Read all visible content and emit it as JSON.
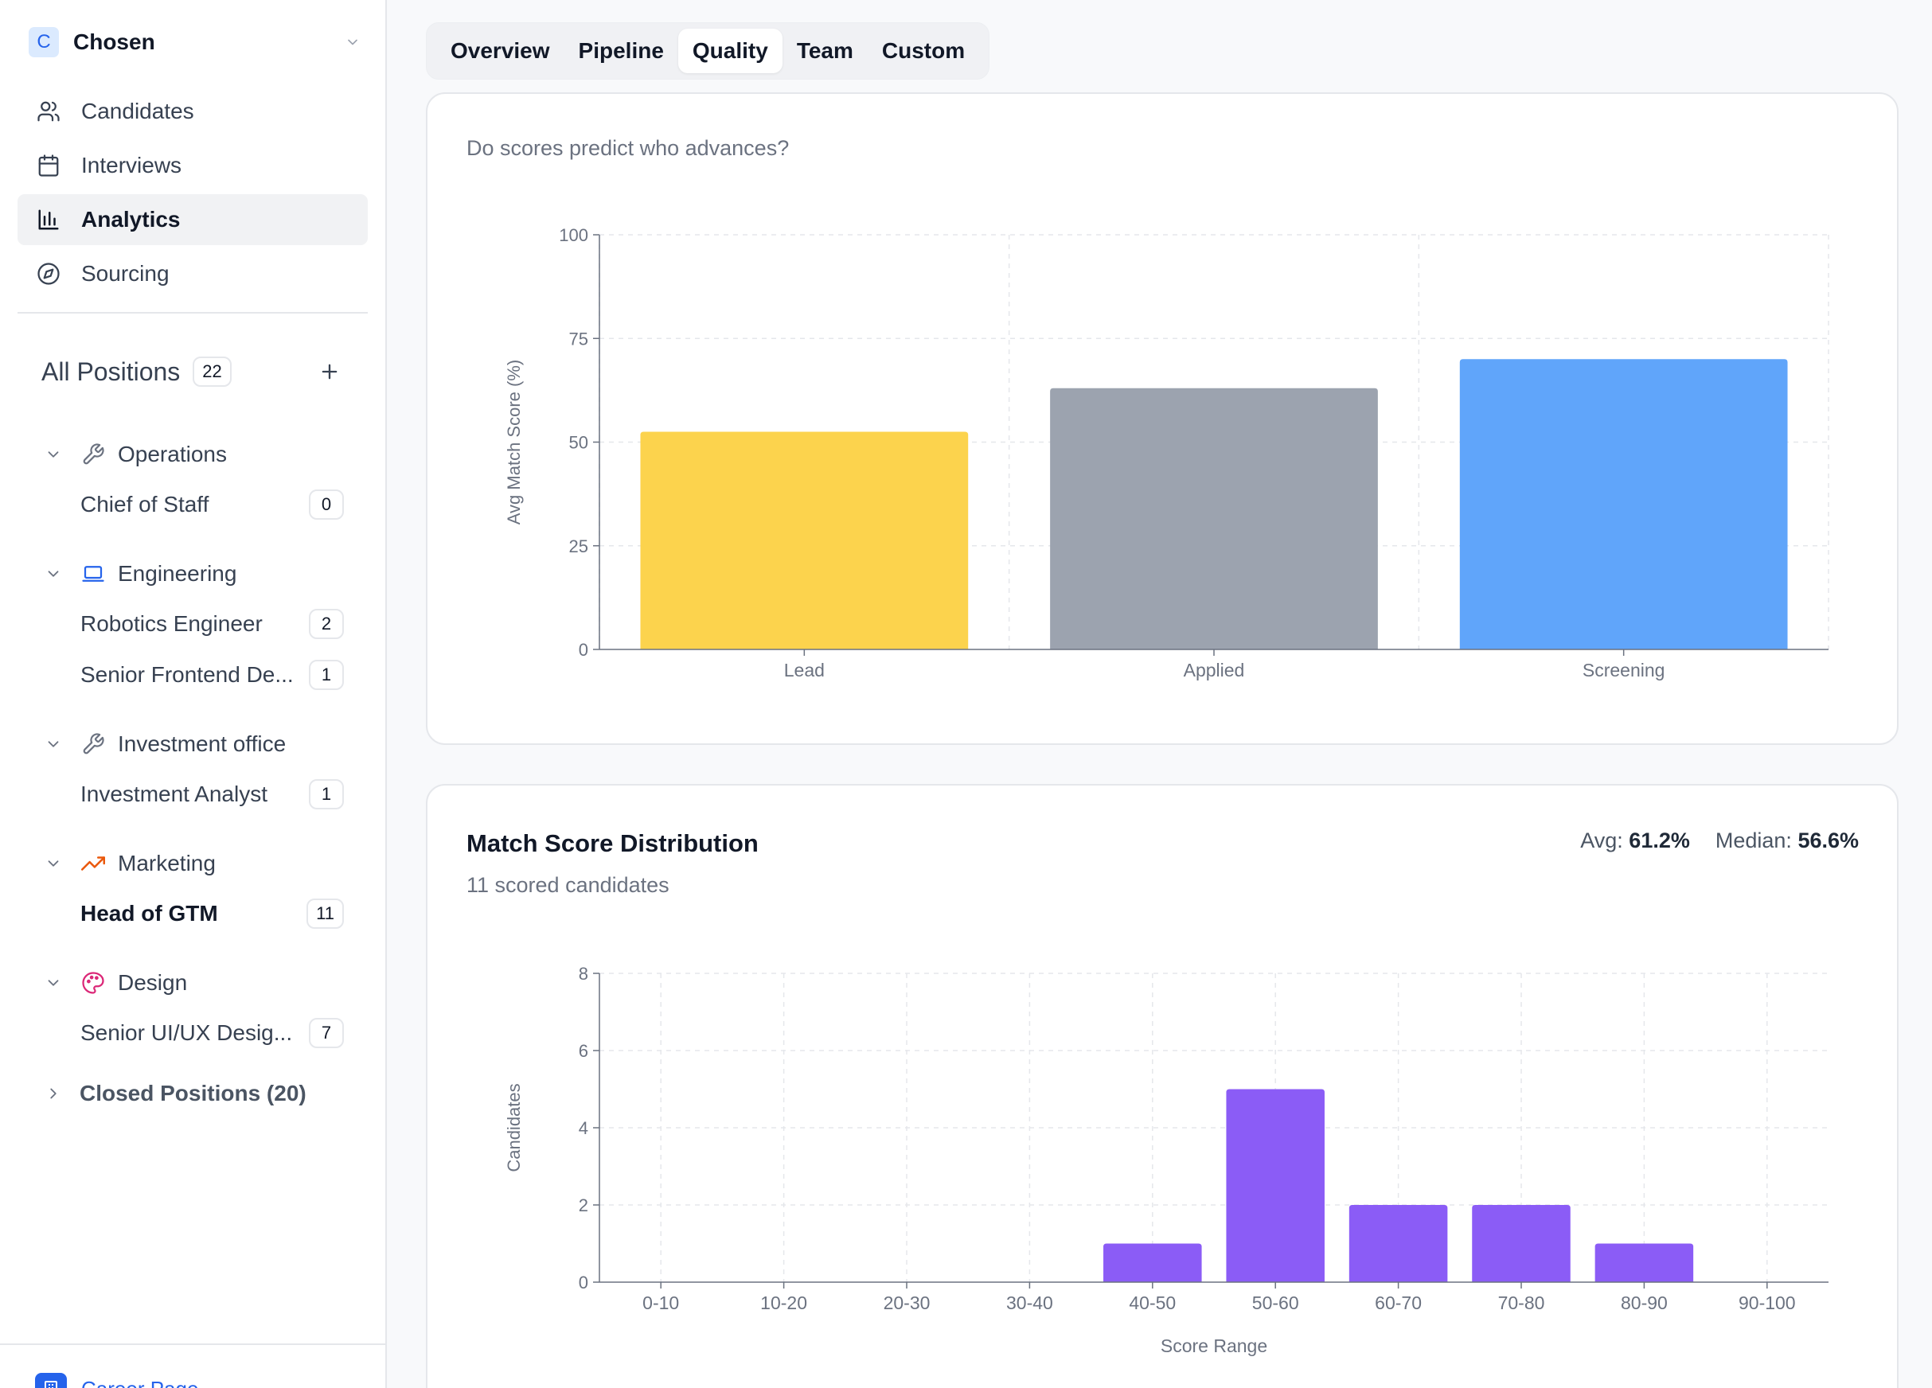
{
  "sidebar": {
    "workspace": {
      "logo_letter": "C",
      "name": "Chosen"
    },
    "nav": [
      {
        "label": "Candidates",
        "icon": "users-icon",
        "active": false
      },
      {
        "label": "Interviews",
        "icon": "calendar-icon",
        "active": false
      },
      {
        "label": "Analytics",
        "icon": "bar-chart-icon",
        "active": true
      },
      {
        "label": "Sourcing",
        "icon": "compass-icon",
        "active": false
      }
    ],
    "positions": {
      "label": "All Positions",
      "count": "22"
    },
    "groups": [
      {
        "name": "Operations",
        "icon": "wrench-icon",
        "jobs": [
          {
            "title": "Chief of Staff",
            "count": "0",
            "bold": false
          }
        ]
      },
      {
        "name": "Engineering",
        "icon": "laptop-icon",
        "jobs": [
          {
            "title": "Robotics Engineer",
            "count": "2",
            "bold": false
          },
          {
            "title": "Senior Frontend De...",
            "count": "1",
            "bold": false
          }
        ]
      },
      {
        "name": "Investment office",
        "icon": "wrench-icon",
        "jobs": [
          {
            "title": "Investment Analyst",
            "count": "1",
            "bold": false
          }
        ]
      },
      {
        "name": "Marketing",
        "icon": "trending-up-icon",
        "jobs": [
          {
            "title": "Head of GTM",
            "count": "11",
            "bold": true
          }
        ]
      },
      {
        "name": "Design",
        "icon": "palette-icon",
        "jobs": [
          {
            "title": "Senior UI/UX Desig...",
            "count": "7",
            "bold": false
          }
        ]
      }
    ],
    "closed_label": "Closed Positions (20)",
    "career_label": "Career Page"
  },
  "tabs": [
    {
      "label": "Overview",
      "active": false
    },
    {
      "label": "Pipeline",
      "active": false
    },
    {
      "label": "Quality",
      "active": true
    },
    {
      "label": "Team",
      "active": false
    },
    {
      "label": "Custom",
      "active": false
    }
  ],
  "card1": {
    "subtitle": "Do scores predict who advances?"
  },
  "card2": {
    "title": "Match Score Distribution",
    "subtitle": "11 scored candidates",
    "avg_label": "Avg:",
    "avg_value": "61.2%",
    "median_label": "Median:",
    "median_value": "56.6%"
  },
  "colors": {
    "lead": "#fcd34d",
    "applied": "#9ca3af",
    "screening": "#60a5fa",
    "distribution": "#8b5cf6",
    "accent": "#2563eb"
  },
  "chart_data": [
    {
      "type": "bar",
      "categories": [
        "Lead",
        "Applied",
        "Screening"
      ],
      "values": [
        52.5,
        63,
        70
      ],
      "ylabel": "Avg Match Score (%)",
      "xlabel": "",
      "ylim": [
        0,
        100
      ],
      "yticks": [
        0,
        25,
        50,
        75,
        100
      ],
      "grid": true
    },
    {
      "type": "bar",
      "categories": [
        "0-10",
        "10-20",
        "20-30",
        "30-40",
        "40-50",
        "50-60",
        "60-70",
        "70-80",
        "80-90",
        "90-100"
      ],
      "values": [
        0,
        0,
        0,
        0,
        1,
        5,
        2,
        2,
        1,
        0
      ],
      "ylabel": "Candidates",
      "xlabel": "Score Range",
      "ylim": [
        0,
        8
      ],
      "yticks": [
        0,
        2,
        4,
        6,
        8
      ],
      "grid": true
    }
  ]
}
